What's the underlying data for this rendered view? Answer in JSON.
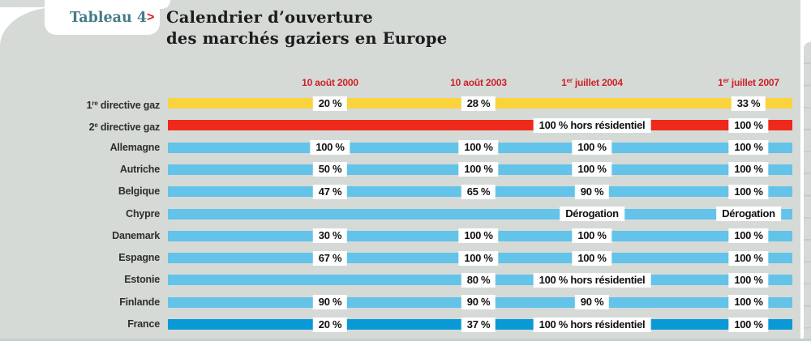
{
  "header": {
    "tab_label": "Tableau 4",
    "chevron": ">",
    "title_line1": "Calendrier d’ouverture",
    "title_line2": "des marchés gaziers en Europe"
  },
  "colors": {
    "panel_bg": "#d5dad7",
    "yellow": "#fbd33d",
    "red": "#ee2a1c",
    "blue": "#63c3e8",
    "blue_dark": "#0999d6",
    "date_red": "#ce2127",
    "tab_teal": "#447c87",
    "title_ink": "#1c1c1c",
    "label_ink": "#2e2e2e"
  },
  "chart_data": {
    "type": "table",
    "title": "Tableau 4 > Calendrier d’ouverture des marchés gaziers en Europe",
    "columns": [
      {
        "pre": "10 août 2000",
        "sup": "",
        "post": ""
      },
      {
        "pre": "10 août 2003",
        "sup": "",
        "post": ""
      },
      {
        "pre": "1",
        "sup": "er",
        "post": " juillet 2004"
      },
      {
        "pre": "1",
        "sup": "er",
        "post": " juillet 2007"
      }
    ],
    "rows": [
      {
        "pre": "1",
        "sup": "re",
        "post": " directive gaz",
        "color": "yellow",
        "cells": [
          {
            "col": 0,
            "text": "20 %"
          },
          {
            "col": 1,
            "text": "28 %"
          },
          {
            "col": 3,
            "text": "33 %"
          }
        ]
      },
      {
        "pre": "2",
        "sup": "e",
        "post": " directive gaz",
        "color": "red",
        "cells": [
          {
            "col": 2,
            "text": "100 % hors résidentiel"
          },
          {
            "col": 3,
            "text": "100 %"
          }
        ]
      },
      {
        "pre": "Allemagne",
        "sup": "",
        "post": "",
        "color": "blue",
        "cells": [
          {
            "col": 0,
            "text": "100 %"
          },
          {
            "col": 1,
            "text": "100 %"
          },
          {
            "col": 2,
            "text": "100 %"
          },
          {
            "col": 3,
            "text": "100 %"
          }
        ]
      },
      {
        "pre": "Autriche",
        "sup": "",
        "post": "",
        "color": "blue",
        "cells": [
          {
            "col": 0,
            "text": "50 %"
          },
          {
            "col": 1,
            "text": "100 %"
          },
          {
            "col": 2,
            "text": "100 %"
          },
          {
            "col": 3,
            "text": "100 %"
          }
        ]
      },
      {
        "pre": "Belgique",
        "sup": "",
        "post": "",
        "color": "blue",
        "cells": [
          {
            "col": 0,
            "text": "47 %"
          },
          {
            "col": 1,
            "text": "65 %"
          },
          {
            "col": 2,
            "text": "90 %"
          },
          {
            "col": 3,
            "text": "100 %"
          }
        ]
      },
      {
        "pre": "Chypre",
        "sup": "",
        "post": "",
        "color": "blue",
        "cells": [
          {
            "col": 2,
            "text": "Dérogation"
          },
          {
            "col": 3,
            "text": "Dérogation"
          }
        ]
      },
      {
        "pre": "Danemark",
        "sup": "",
        "post": "",
        "color": "blue",
        "cells": [
          {
            "col": 0,
            "text": "30 %"
          },
          {
            "col": 1,
            "text": "100 %"
          },
          {
            "col": 2,
            "text": "100 %"
          },
          {
            "col": 3,
            "text": "100 %"
          }
        ]
      },
      {
        "pre": "Espagne",
        "sup": "",
        "post": "",
        "color": "blue",
        "cells": [
          {
            "col": 0,
            "text": "67 %"
          },
          {
            "col": 1,
            "text": "100 %"
          },
          {
            "col": 2,
            "text": "100 %"
          },
          {
            "col": 3,
            "text": "100 %"
          }
        ]
      },
      {
        "pre": "Estonie",
        "sup": "",
        "post": "",
        "color": "blue",
        "cells": [
          {
            "col": 1,
            "text": "80 %"
          },
          {
            "col": 2,
            "text": "100 % hors résidentiel"
          },
          {
            "col": 3,
            "text": "100 %"
          }
        ]
      },
      {
        "pre": "Finlande",
        "sup": "",
        "post": "",
        "color": "blue",
        "cells": [
          {
            "col": 0,
            "text": "90 %"
          },
          {
            "col": 1,
            "text": "90 %"
          },
          {
            "col": 2,
            "text": "90 %"
          },
          {
            "col": 3,
            "text": "100 %"
          }
        ]
      },
      {
        "pre": "France",
        "sup": "",
        "post": "",
        "color": "blue_dark",
        "cells": [
          {
            "col": 0,
            "text": "20 %"
          },
          {
            "col": 1,
            "text": "37 %"
          },
          {
            "col": 2,
            "text": "100 % hors résidentiel"
          },
          {
            "col": 3,
            "text": "100 %"
          }
        ]
      }
    ]
  }
}
